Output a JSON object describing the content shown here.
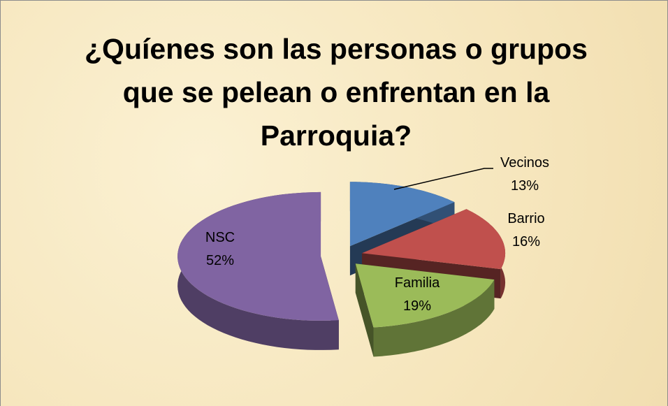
{
  "chart_data": {
    "type": "pie3d",
    "title": "¿Quíenes son las personas o grupos que se pelean o enfrentan en la Parroquia?",
    "categories": [
      "Vecinos",
      "Barrio",
      "Familia",
      "NSC"
    ],
    "values": [
      13,
      16,
      19,
      52
    ],
    "value_labels": [
      "13%",
      "16%",
      "19%",
      "52%"
    ],
    "colors": [
      "#4f81bd",
      "#c0504d",
      "#9bbb59",
      "#8064a2"
    ]
  }
}
